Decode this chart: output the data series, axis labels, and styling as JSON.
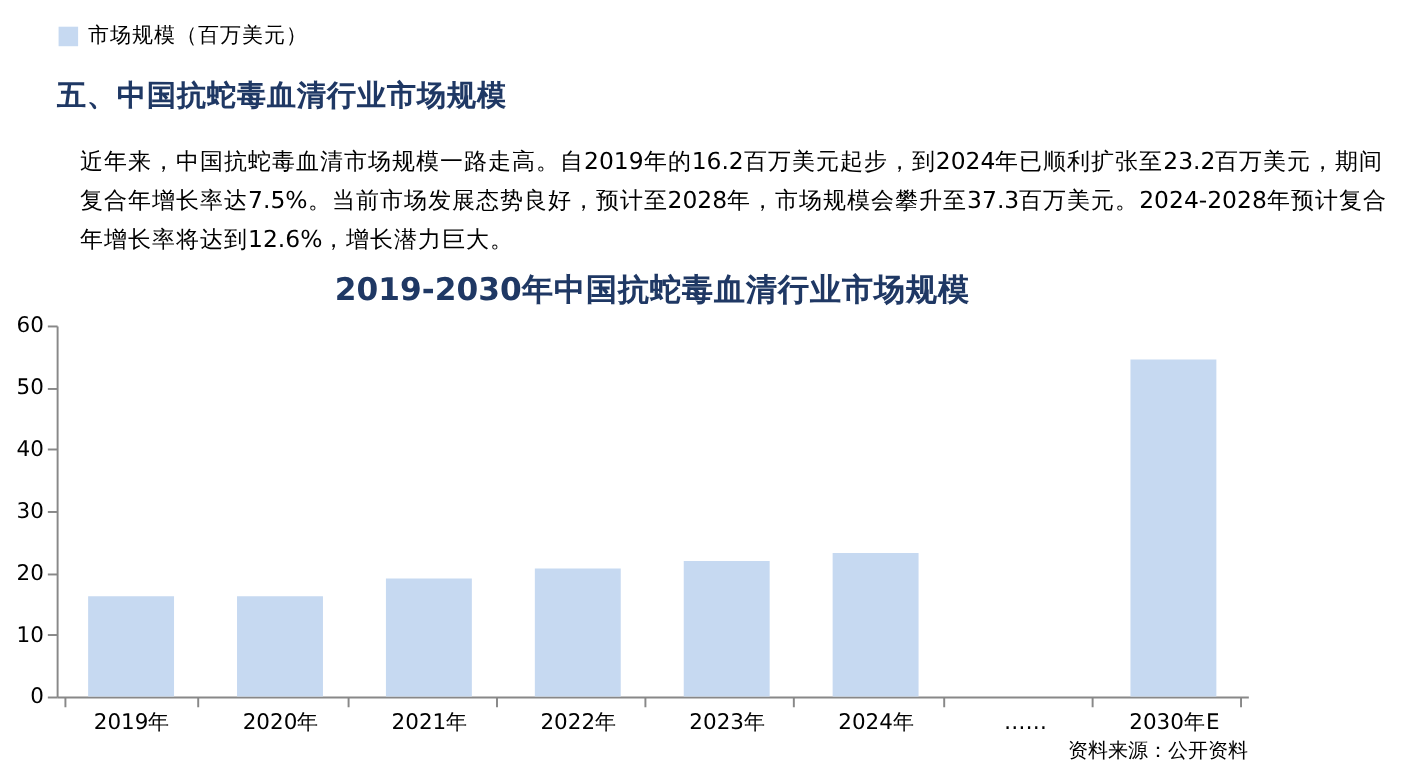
{
  "chart_data": {
    "type": "bar",
    "title": "2019-2030年中国抗蛇毒血清行业市场规模",
    "subtitle": "近年来，中国抗蛇毒血清市场规模一路走高。自2019年的16.2百万美元起步，到2024年已顺利扩张至23.2百万美元，期间复合年增长率达7.5%。当前市场发展态势良好，预计至2028年，市场规模会攀升至37.3百万美元。2024-2028年预计复合年增长率将达到12.6%，增长潜力巨大。",
    "annotations": [
      "五、中国抗蛇毒血清行业市场规模",
      "资料来源：公开资料"
    ],
    "categories": [
      "2019年",
      "2020年",
      "2021年",
      "2022年",
      "2023年",
      "2024年",
      "……",
      "2030年E"
    ],
    "series": [
      {
        "name": "市场规模（百万美元）",
        "color": "#c6d9f1",
        "values": [
          16.2,
          16.2,
          19.1,
          20.7,
          21.9,
          23.2,
          null,
          54.5
        ]
      }
    ],
    "ylim": [
      0,
      60
    ],
    "yticks": [
      0,
      10,
      20,
      30,
      40,
      50,
      60
    ],
    "grid": false,
    "legend": "top"
  }
}
